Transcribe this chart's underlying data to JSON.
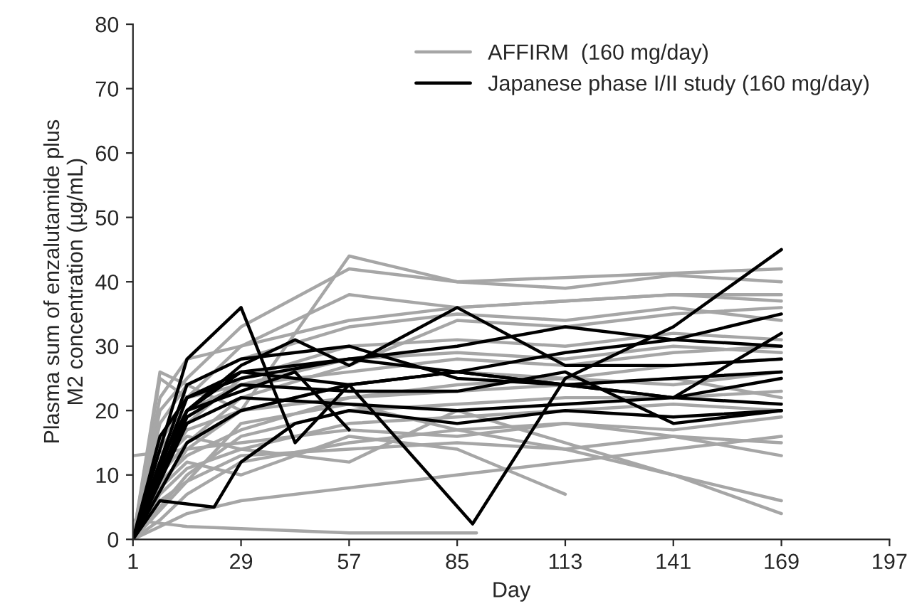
{
  "chart_data": {
    "type": "line",
    "xlabel": "Day",
    "ylabel": "Plasma sum of enzalutamide plus\nM2 concentration (µg/mL)",
    "xlim": [
      1,
      197
    ],
    "xticks": [
      1,
      29,
      57,
      85,
      113,
      141,
      169,
      197
    ],
    "ylim": [
      0,
      80
    ],
    "yticks": [
      0,
      10,
      20,
      30,
      40,
      50,
      60,
      70,
      80
    ],
    "grid": false,
    "legend": "top right",
    "marker": "none",
    "line_style": "solid",
    "series": [
      {
        "name": "AFFIRM  (160 mg/day)",
        "color": "#a6a6a6",
        "x": [
          1,
          8,
          15,
          29,
          57,
          85,
          113,
          141,
          169
        ],
        "values": [
          0,
          12,
          18,
          25,
          30,
          31,
          30,
          32,
          31
        ]
      },
      {
        "color": "#a6a6a6",
        "x": [
          1,
          8,
          15,
          29,
          57,
          85,
          113,
          141,
          169
        ],
        "values": [
          0,
          8,
          14,
          20,
          24,
          26,
          25,
          27,
          28
        ]
      },
      {
        "color": "#a6a6a6",
        "x": [
          1,
          8,
          15,
          29,
          57,
          85,
          113,
          141,
          169
        ],
        "values": [
          0,
          5,
          10,
          16,
          20,
          21,
          22,
          22,
          23
        ]
      },
      {
        "color": "#a6a6a6",
        "x": [
          1,
          8,
          15,
          29,
          57,
          85,
          113,
          141,
          169
        ],
        "values": [
          0,
          15,
          22,
          30,
          38,
          36,
          37,
          38,
          37
        ]
      },
      {
        "color": "#a6a6a6",
        "x": [
          1,
          8,
          15,
          29,
          57,
          85,
          113,
          141,
          169
        ],
        "values": [
          0,
          3,
          7,
          12,
          15,
          17,
          18,
          17,
          19
        ]
      },
      {
        "color": "#a6a6a6",
        "x": [
          1,
          8,
          15,
          29,
          57,
          85,
          113,
          141,
          169
        ],
        "values": [
          0,
          20,
          25,
          33,
          42,
          40,
          39,
          41,
          40
        ]
      },
      {
        "color": "#a6a6a6",
        "x": [
          1,
          8,
          15,
          29,
          57,
          85,
          113,
          141,
          169
        ],
        "values": [
          0,
          6,
          9,
          13,
          14,
          15,
          14,
          16,
          15
        ]
      },
      {
        "color": "#a6a6a6",
        "x": [
          1,
          8,
          15,
          29,
          57,
          85,
          113,
          141,
          169
        ],
        "values": [
          0,
          25,
          22,
          24,
          28,
          29,
          28,
          30,
          29
        ]
      },
      {
        "color": "#a6a6a6",
        "x": [
          1,
          8,
          15,
          29,
          57,
          85,
          113,
          141,
          169
        ],
        "values": [
          0,
          10,
          15,
          22,
          27,
          34,
          33,
          35,
          36
        ]
      },
      {
        "color": "#a6a6a6",
        "x": [
          1,
          8,
          15,
          29,
          57,
          85,
          113,
          141,
          169
        ],
        "values": [
          0,
          2,
          4,
          6,
          8,
          10,
          12,
          14,
          16
        ]
      },
      {
        "color": "#a6a6a6",
        "x": [
          1,
          15,
          57,
          90
        ],
        "values": [
          3,
          2,
          1,
          1
        ]
      },
      {
        "color": "#a6a6a6",
        "x": [
          1,
          8,
          15,
          29,
          57,
          85,
          113
        ],
        "values": [
          0,
          8,
          12,
          10,
          16,
          14,
          7
        ]
      },
      {
        "color": "#a6a6a6",
        "x": [
          1,
          8,
          15,
          29,
          57,
          85,
          113,
          141,
          169
        ],
        "values": [
          0,
          18,
          24,
          28,
          33,
          35,
          34,
          36,
          34
        ]
      },
      {
        "color": "#a6a6a6",
        "x": [
          1,
          8,
          15,
          29,
          57,
          85,
          113,
          141,
          169
        ],
        "values": [
          0,
          9,
          13,
          17,
          22,
          24,
          25,
          24,
          26
        ]
      },
      {
        "color": "#a6a6a6",
        "x": [
          1,
          8,
          15,
          29,
          57,
          85,
          113,
          141,
          169
        ],
        "values": [
          0,
          7,
          11,
          14,
          18,
          19,
          20,
          21,
          20
        ]
      },
      {
        "color": "#a6a6a6",
        "x": [
          1,
          8,
          15,
          29,
          57,
          85,
          141,
          169
        ],
        "values": [
          0,
          12,
          16,
          14,
          12,
          20,
          10,
          4
        ]
      },
      {
        "color": "#a6a6a6",
        "x": [
          1,
          8,
          15,
          29,
          57,
          85,
          113,
          141,
          169
        ],
        "values": [
          0,
          22,
          28,
          30,
          34,
          36,
          37,
          38,
          38
        ]
      },
      {
        "color": "#a6a6a6",
        "x": [
          1,
          8,
          15,
          29,
          57,
          85,
          113,
          141,
          169
        ],
        "values": [
          0,
          14,
          20,
          24,
          26,
          28,
          27,
          29,
          30
        ]
      },
      {
        "color": "#a6a6a6",
        "x": [
          1,
          29,
          57,
          85,
          113,
          141,
          169
        ],
        "values": [
          13,
          15,
          17,
          16,
          18,
          16,
          13
        ]
      },
      {
        "color": "#a6a6a6",
        "x": [
          1,
          8,
          15,
          29,
          57,
          85,
          113,
          141,
          169
        ],
        "values": [
          0,
          11,
          17,
          20,
          22,
          23,
          24,
          25,
          22
        ]
      },
      {
        "color": "#a6a6a6",
        "x": [
          1,
          8,
          29,
          57,
          85,
          169
        ],
        "values": [
          0,
          26,
          20,
          44,
          40,
          42
        ]
      },
      {
        "color": "#a6a6a6",
        "x": [
          1,
          15,
          29,
          57,
          85,
          113,
          141,
          169
        ],
        "values": [
          0,
          9,
          18,
          21,
          17,
          14,
          10,
          6
        ]
      },
      {
        "name": "Japanese phase I/II study (160 mg/day)",
        "color": "#000000",
        "x": [
          1,
          15,
          29,
          43,
          57,
          85,
          113,
          141,
          169
        ],
        "values": [
          0,
          28,
          36,
          15,
          24,
          26,
          24,
          25,
          26
        ]
      },
      {
        "color": "#000000",
        "x": [
          1,
          15,
          29,
          57,
          89,
          113,
          141,
          169
        ],
        "values": [
          0,
          22,
          26,
          24,
          2.4,
          25,
          33,
          45
        ]
      },
      {
        "color": "#000000",
        "x": [
          1,
          8,
          22,
          29,
          43,
          57,
          85,
          113,
          141,
          169
        ],
        "values": [
          0,
          6,
          5,
          12,
          18,
          20,
          18,
          20,
          19,
          20
        ]
      },
      {
        "color": "#000000",
        "x": [
          1,
          15,
          29,
          43,
          57,
          85,
          113,
          141,
          169
        ],
        "values": [
          0,
          20,
          27,
          31,
          27,
          36,
          27,
          27,
          28
        ]
      },
      {
        "color": "#000000",
        "x": [
          1,
          8,
          15,
          29,
          57,
          85,
          113,
          141,
          169
        ],
        "values": [
          0,
          12,
          20,
          26,
          28,
          26,
          29,
          31,
          30
        ]
      },
      {
        "color": "#000000",
        "x": [
          1,
          15,
          29,
          57,
          85,
          113,
          141,
          169
        ],
        "values": [
          0,
          24,
          28,
          30,
          25,
          24,
          22,
          25
        ]
      },
      {
        "color": "#000000",
        "x": [
          1,
          15,
          29,
          57,
          85,
          113,
          141,
          169
        ],
        "values": [
          0,
          18,
          22,
          21,
          20,
          21,
          22,
          21
        ]
      },
      {
        "color": "#000000",
        "x": [
          1,
          15,
          29,
          43,
          57
        ],
        "values": [
          0,
          20,
          23,
          26,
          17
        ]
      },
      {
        "color": "#000000",
        "x": [
          1,
          8,
          15,
          29,
          57,
          85,
          113,
          141,
          169
        ],
        "values": [
          0,
          16,
          22,
          25,
          28,
          30,
          33,
          31,
          35
        ]
      },
      {
        "color": "#000000",
        "x": [
          1,
          15,
          29,
          57,
          85,
          113,
          141,
          169
        ],
        "values": [
          0,
          15,
          20,
          24,
          26,
          24,
          22,
          32
        ]
      },
      {
        "color": "#000000",
        "x": [
          1,
          15,
          29,
          57,
          85,
          113,
          141,
          169
        ],
        "values": [
          0,
          19,
          24,
          23,
          23,
          26,
          18,
          20
        ]
      }
    ]
  }
}
